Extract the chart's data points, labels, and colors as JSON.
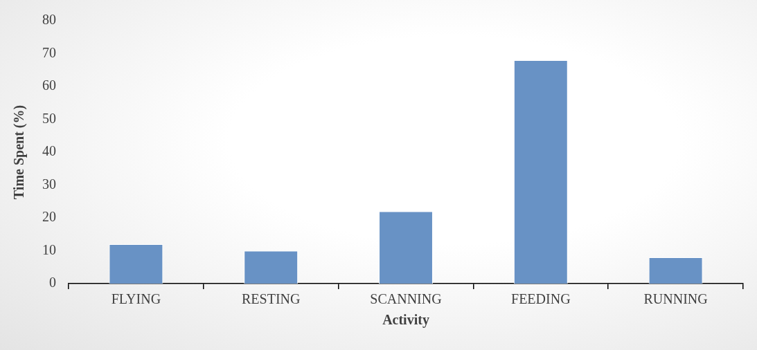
{
  "chart_data": {
    "type": "bar",
    "xlabel": "Activity",
    "ylabel": "Time Spent (%)",
    "categories": [
      "FLYING",
      "RESTING",
      "SCANNING",
      "FEEDING",
      "RUNNING"
    ],
    "values": [
      12,
      10,
      22,
      68,
      8
    ],
    "color": "#6892c5",
    "ylim": [
      0,
      80
    ],
    "yticks": [
      0,
      10,
      20,
      30,
      40,
      50,
      60,
      70,
      80
    ],
    "grid": false,
    "legend": false
  }
}
